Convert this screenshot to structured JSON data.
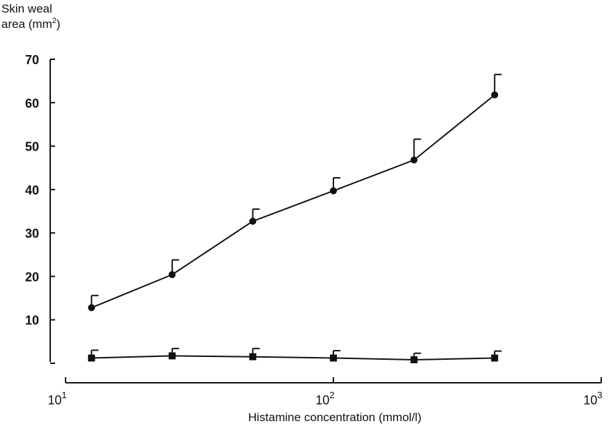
{
  "chart_data": {
    "type": "line",
    "xlabel": "Histamine concentration (mmol/l)",
    "ylabel_line1": "Skin weal",
    "ylabel_line2_main": "area (mm",
    "ylabel_line2_sup": "2",
    "ylabel_line2_end": ")",
    "x_scale": "log",
    "xlim": [
      10,
      1000
    ],
    "ylim": [
      0,
      70
    ],
    "x_ticks": [
      {
        "base": "10",
        "exp": "1",
        "value": 10
      },
      {
        "base": "10",
        "exp": "2",
        "value": 100
      },
      {
        "base": "10",
        "exp": "3",
        "value": 1000
      }
    ],
    "y_ticks": [
      {
        "label": "",
        "value": 0
      },
      {
        "label": "10",
        "value": 10
      },
      {
        "label": "20",
        "value": 20
      },
      {
        "label": "30",
        "value": 30
      },
      {
        "label": "40",
        "value": 40
      },
      {
        "label": "50",
        "value": 50
      },
      {
        "label": "60",
        "value": 60
      },
      {
        "label": "70",
        "value": 70
      }
    ],
    "grid": false,
    "series": [
      {
        "marker": "circle",
        "x": [
          12.5,
          25,
          50,
          100,
          200,
          400
        ],
        "y": [
          12.8,
          20.4,
          32.7,
          39.7,
          46.8,
          61.8
        ],
        "error_upper": [
          15.6,
          23.8,
          35.5,
          42.7,
          51.6,
          66.5
        ]
      },
      {
        "marker": "square",
        "x": [
          12.5,
          25,
          50,
          100,
          200,
          400
        ],
        "y": [
          1.2,
          1.7,
          1.5,
          1.2,
          0.8,
          1.2
        ],
        "error_upper": [
          3.0,
          3.4,
          3.4,
          2.9,
          2.3,
          2.8
        ]
      }
    ]
  }
}
